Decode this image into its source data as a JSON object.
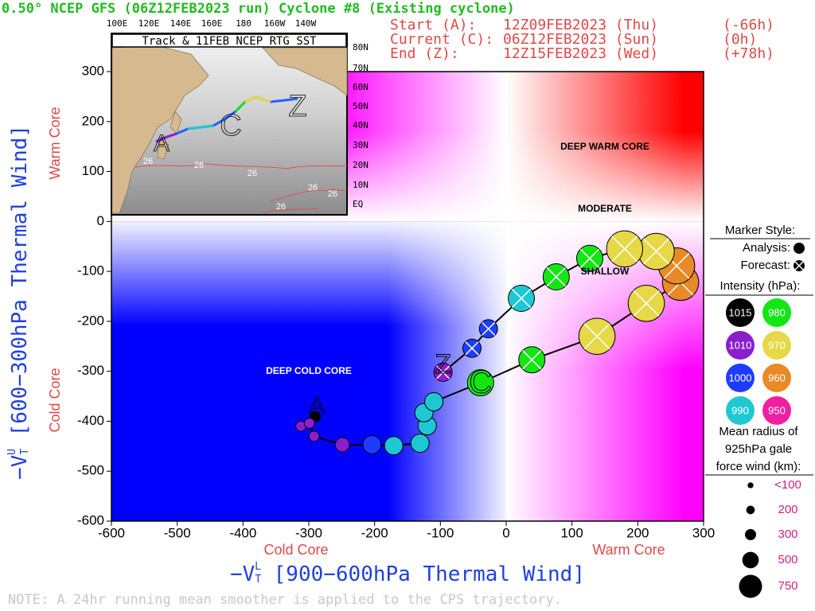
{
  "chart_data": {
    "type": "scatter",
    "title": "0.50° NCEP GFS (06Z12FEB2023 run) Cyclone #8 (Existing cyclone)",
    "info": [
      [
        "Start (A):",
        "12Z09FEB2023 (Thu)",
        "(-66h)"
      ],
      [
        "Current (C):",
        "06Z12FEB2023 (Sun)",
        "(0h)"
      ],
      [
        "End (Z):",
        "12Z15FEB2023 (Wed)",
        "(+78h)"
      ]
    ],
    "x_label": {
      "prefix": "−V",
      "sup": "L",
      "sub": "T",
      "text": " [900−600hPa Thermal Wind]"
    },
    "y_label": {
      "prefix": "−V",
      "sup": "U",
      "sub": "T",
      "text": " [600−300hPa Thermal Wind]"
    },
    "x_side_labels": [
      "Cold Core",
      "Warm Core"
    ],
    "y_side_labels": [
      "Cold Core",
      "Warm Core"
    ],
    "regions": [
      "DEEP WARM CORE",
      "MODERATE",
      "SHALLOW",
      "DEEP COLD CORE"
    ],
    "track_labels": [
      "A",
      "C",
      "Z"
    ],
    "note": "NOTE:  A 24hr running mean smoother is applied to the CPS trajectory.",
    "xlim": [
      -600,
      300
    ],
    "ylim": [
      -600,
      300
    ],
    "xticks": [
      -600,
      -500,
      -400,
      -300,
      -200,
      -100,
      0,
      100,
      200,
      300
    ],
    "yticks": [
      -600,
      -500,
      -400,
      -300,
      -200,
      -100,
      0,
      100,
      200,
      300
    ],
    "series": [
      {
        "name": "Analysis:",
        "x": [
          -290,
          -312,
          -299,
          -292,
          -249,
          -204,
          -171,
          -131,
          -120,
          -125,
          -110,
          -39
        ],
        "y": [
          -391,
          -410,
          -404,
          -430,
          -447,
          -447,
          -449,
          -444,
          -409,
          -383,
          -361,
          -323
        ],
        "intensity": [
          1015,
          1010,
          1010,
          1010,
          1010,
          1000,
          990,
          990,
          990,
          990,
          990,
          980
        ],
        "size": [
          100,
          100,
          100,
          100,
          200,
          300,
          300,
          300,
          300,
          300,
          300,
          500
        ]
      },
      {
        "name": "Forecast:",
        "x": [
          39,
          138,
          213,
          265,
          259,
          228,
          180,
          127,
          76,
          23,
          -27,
          -52,
          -96
        ],
        "y": [
          -277,
          -230,
          -164,
          -122,
          -89,
          -60,
          -55,
          -74,
          -111,
          -154,
          -215,
          -254,
          -302
        ],
        "intensity": [
          980,
          970,
          970,
          960,
          960,
          970,
          970,
          980,
          980,
          990,
          1000,
          1000,
          1010
        ],
        "size": [
          500,
          750,
          750,
          750,
          750,
          750,
          750,
          500,
          500,
          500,
          300,
          300,
          300
        ]
      }
    ],
    "marker_title": "Marker Style:",
    "intensity_legend": {
      "title": "Intensity (hPa):",
      "values": [
        1015,
        1010,
        1000,
        990,
        980,
        970,
        960,
        950
      ],
      "colors": [
        "#000000",
        "#8a1ecc",
        "#1e3cff",
        "#1ec8d2",
        "#14e614",
        "#e6d846",
        "#e88a28",
        "#f01ea0"
      ]
    },
    "size_legend": {
      "title": [
        "Mean radius of",
        "925hPa gale",
        "force wind (km):"
      ],
      "ticks": [
        {
          "value": 100,
          "label": "<100"
        },
        200,
        300,
        500,
        750
      ]
    },
    "inset": {
      "title": "Track & 11FEB NCEP RTG SST",
      "lon_labels": [
        "100E",
        "120E",
        "140E",
        "160E",
        "180",
        "160W",
        "140W"
      ],
      "lat_labels": [
        "80N",
        "70N",
        "60N",
        "50N",
        "40N",
        "30N",
        "20N",
        "10N",
        "EQ"
      ],
      "sst_labels": [
        "26",
        "26",
        "26",
        "26",
        "26",
        "26"
      ],
      "track_labels": [
        "A",
        "C",
        "Z"
      ]
    }
  }
}
